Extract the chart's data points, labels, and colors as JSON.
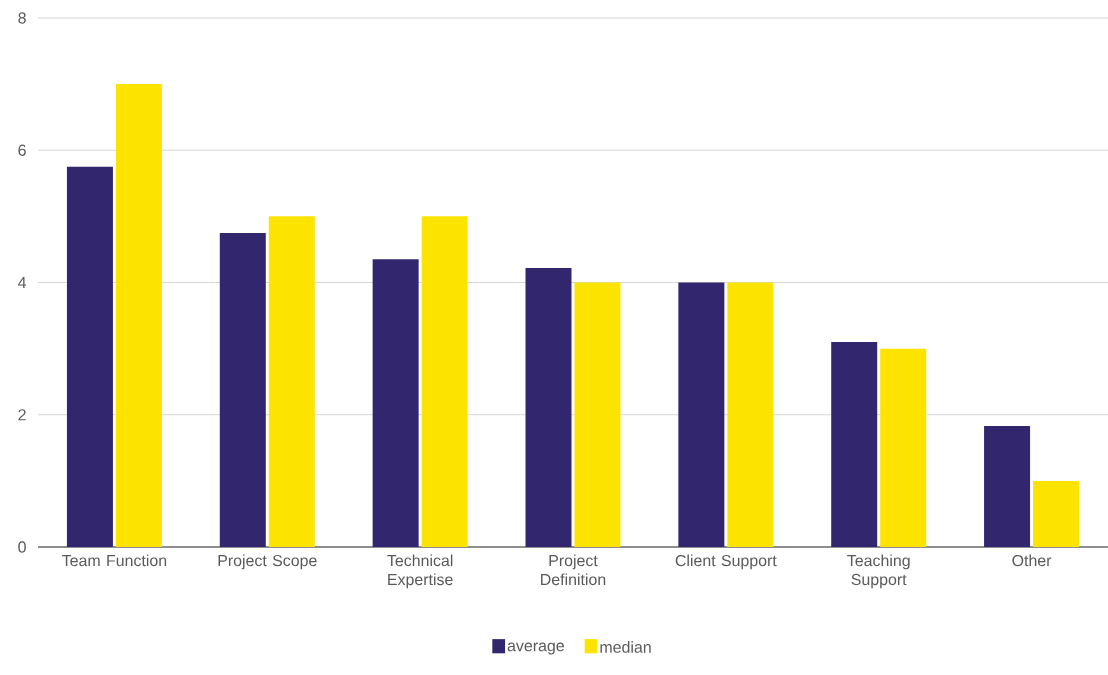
{
  "chart_data": {
    "type": "bar",
    "categories": [
      "Team Function",
      "Project Scope",
      "Technical Expertise",
      "Project Definition",
      "Client Support",
      "Teaching Support",
      "Other"
    ],
    "series": [
      {
        "name": "average",
        "color": "#32266e",
        "values": [
          5.75,
          4.75,
          4.35,
          4.22,
          4.0,
          3.1,
          1.83
        ]
      },
      {
        "name": "median",
        "color": "#fde400",
        "values": [
          7,
          5,
          5,
          4,
          4,
          3,
          1
        ]
      }
    ],
    "ylim": [
      0,
      8
    ],
    "yticks": [
      0,
      2,
      4,
      6,
      8
    ],
    "grid": "y",
    "legend": "bottom"
  }
}
